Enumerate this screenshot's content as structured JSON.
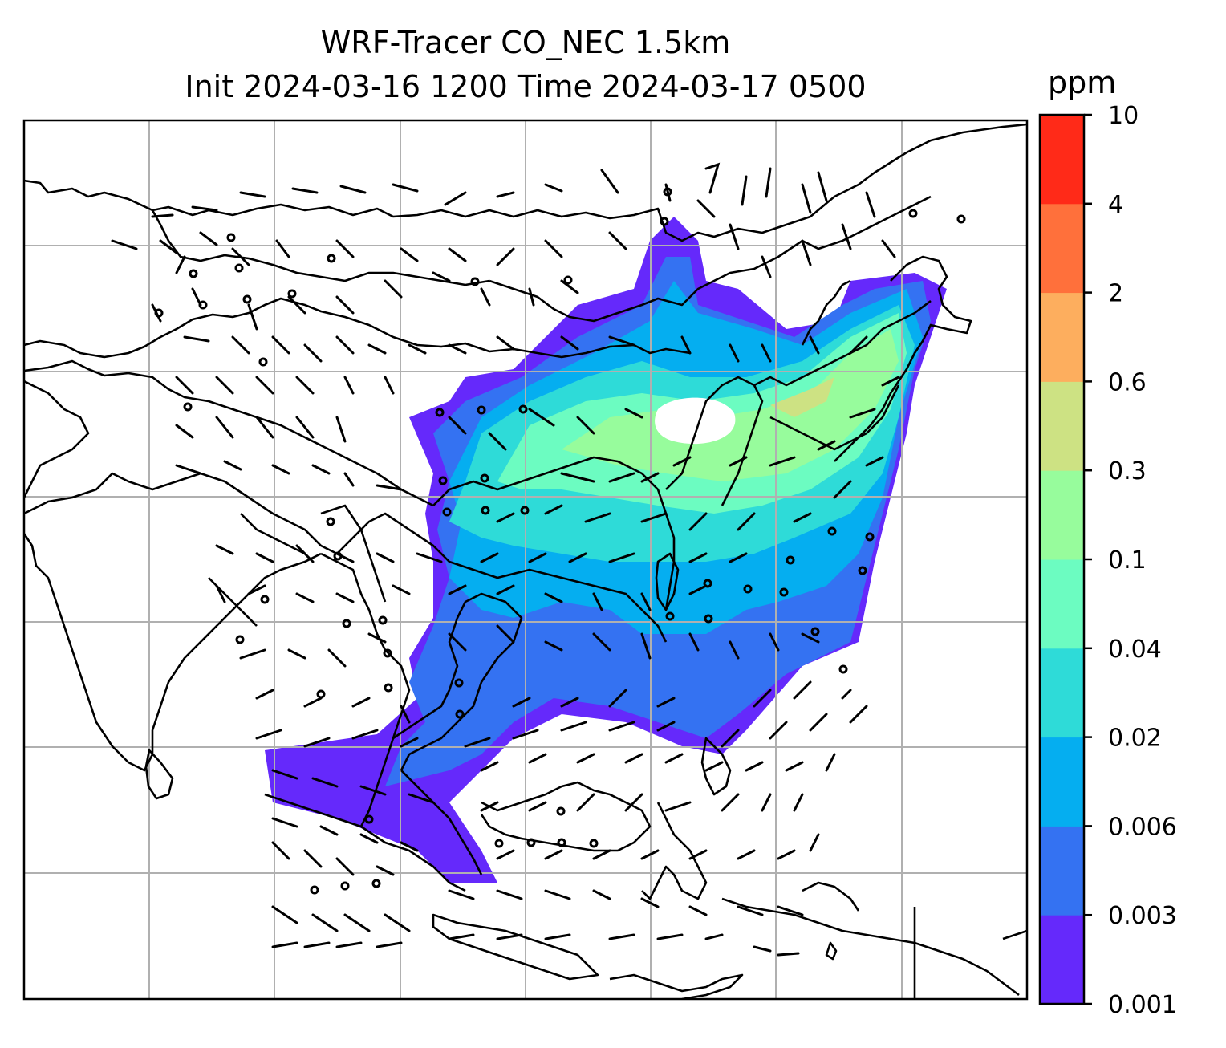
{
  "title": {
    "line1": "WRF-Tracer CO_NEC 1.5km",
    "line2": "Init 2024-03-16 1200 Time 2024-03-17 0500"
  },
  "colorbar": {
    "unit": "ppm",
    "levels": [
      "0.001",
      "0.003",
      "0.006",
      "0.02",
      "0.04",
      "0.1",
      "0.3",
      "0.6",
      "2",
      "4",
      "10"
    ],
    "colors": [
      "#6529fb",
      "#3472f2",
      "#05aef0",
      "#2edbd8",
      "#6cfcc1",
      "#97fc9c",
      "#cde283",
      "#fdae5e",
      "#ff703b",
      "#ff2a18"
    ]
  },
  "map": {
    "gridlines": true,
    "overlays": [
      "coastlines",
      "country-borders",
      "wind-barbs",
      "calm-wind-circles"
    ],
    "field": "CO_NEC tracer concentration at 1.5km"
  }
}
